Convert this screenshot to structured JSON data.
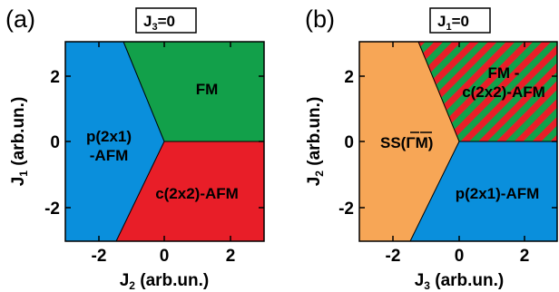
{
  "colors": {
    "blue": "#0a8fdc",
    "green": "#12a04a",
    "red": "#e81e28",
    "orange": "#f7a656",
    "stripe_green": "#12a04a",
    "stripe_red": "#e81e28"
  },
  "panel_a": {
    "label": "(a)",
    "condition": {
      "main": "J",
      "sub": "3",
      "rest": "=0"
    },
    "xaxis": {
      "main": "J",
      "sub": "2",
      "rest": " (arb.un.)"
    },
    "yaxis": {
      "main": "J",
      "sub": "1",
      "rest": " (arb.un.)"
    },
    "xticks": [
      "-2",
      "0",
      "2"
    ],
    "yticks": [
      "2",
      "0",
      "-2"
    ],
    "regions": {
      "fm": "FM",
      "p2x1_line1": "p(2x1)",
      "p2x1_line2": "-AFM",
      "c2x2": "c(2x2)-AFM"
    }
  },
  "panel_b": {
    "label": "(b)",
    "condition": {
      "main": "J",
      "sub": "1",
      "rest": "=0"
    },
    "xaxis": {
      "main": "J",
      "sub": "3",
      "rest": " (arb.un.)"
    },
    "yaxis": {
      "main": "J",
      "sub": "2",
      "rest": " (arb.un.)"
    },
    "xticks": [
      "-2",
      "0",
      "2"
    ],
    "yticks": [
      "2",
      "0",
      "-2"
    ],
    "regions": {
      "mixed_line1": "FM -",
      "mixed_line2": "c(2x2)-AFM",
      "ss_prefix": "SS(",
      "ss_gamma": "Γ",
      "ss_m": "M",
      "ss_suffix": ")",
      "p2x1": "p(2x1)-AFM"
    }
  }
}
